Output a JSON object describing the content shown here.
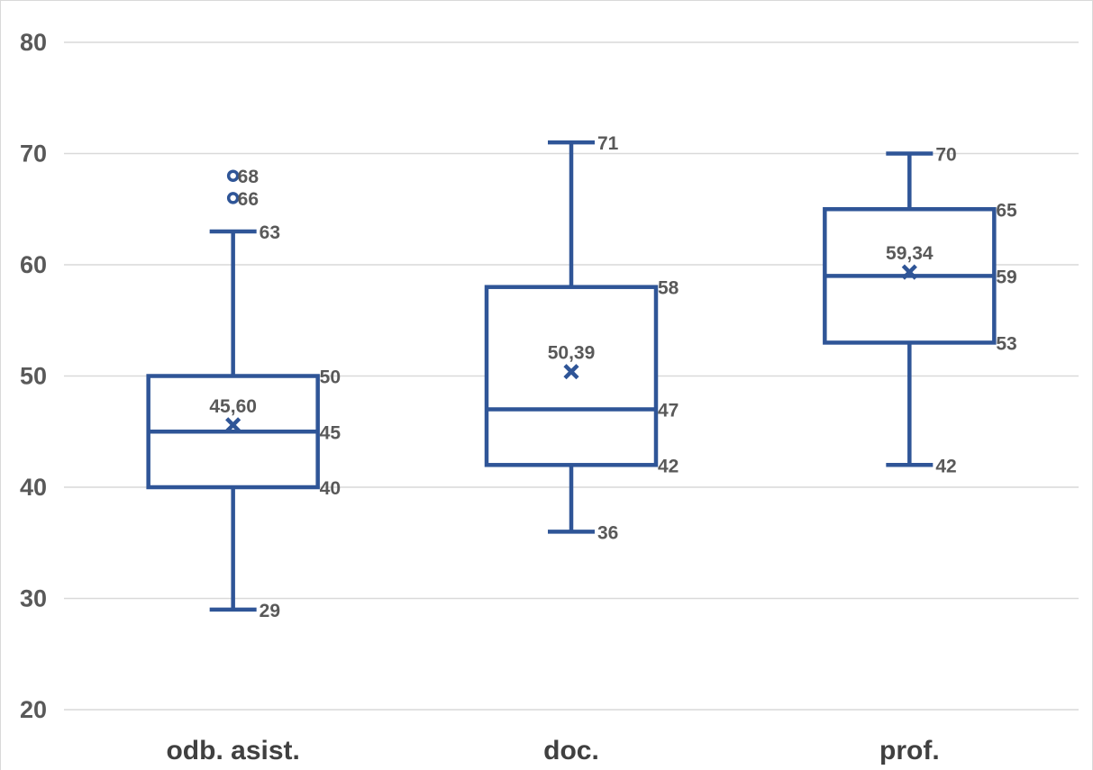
{
  "chart_data": {
    "type": "box",
    "ylim": [
      20,
      80
    ],
    "yticks": [
      20,
      30,
      40,
      50,
      60,
      70,
      80
    ],
    "grid": true,
    "color": "#2F5597",
    "categories": [
      "odb. asist.",
      "doc.",
      "prof."
    ],
    "boxes": [
      {
        "category": "odb. asist.",
        "min": 29,
        "q1": 40,
        "median": 45,
        "q3": 50,
        "max": 63,
        "mean": 45.6,
        "outliers": [
          66,
          68
        ],
        "labels": {
          "min": "29",
          "q1": "40",
          "median": "45",
          "q3": "50",
          "max": "63",
          "mean": "45,60",
          "outliers": [
            "66",
            "68"
          ]
        }
      },
      {
        "category": "doc.",
        "min": 36,
        "q1": 42,
        "median": 47,
        "q3": 58,
        "max": 71,
        "mean": 50.39,
        "outliers": [],
        "labels": {
          "min": "36",
          "q1": "42",
          "median": "47",
          "q3": "58",
          "max": "71",
          "mean": "50,39",
          "outliers": []
        }
      },
      {
        "category": "prof.",
        "min": 42,
        "q1": 53,
        "median": 59,
        "q3": 65,
        "max": 70,
        "mean": 59.34,
        "outliers": [],
        "labels": {
          "min": "42",
          "q1": "53",
          "median": "59",
          "q3": "65",
          "max": "70",
          "mean": "59,34",
          "outliers": []
        }
      }
    ]
  }
}
